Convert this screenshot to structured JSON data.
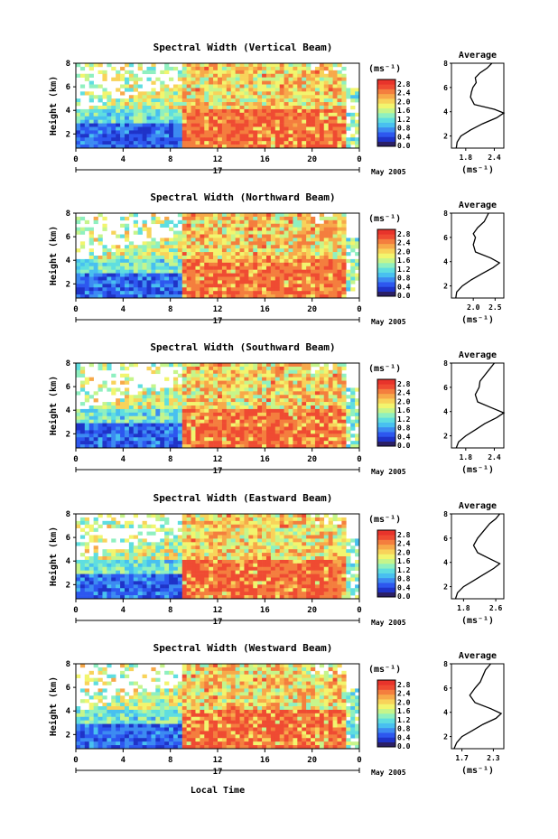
{
  "colors": {
    "colormap": [
      "#2b1f66",
      "#1f33c8",
      "#2d57ef",
      "#3c8bf2",
      "#48c0f0",
      "#5fdee0",
      "#8ff0c0",
      "#c6f58b",
      "#f2f56e",
      "#f8d35a",
      "#f7a94a",
      "#f47e3e",
      "#ef4b32",
      "#e8332b"
    ],
    "line": "#000000",
    "axis": "#000000"
  },
  "figure": {
    "xlabel": "Local Time",
    "date_label": "May 2005",
    "day_label": "17",
    "colorbar_unit": "(ms⁻¹)",
    "avg_title": "Average",
    "avg_unit": "(ms⁻¹)",
    "ylabel": "Height (km)"
  },
  "chart_data": [
    {
      "type": "heatmap",
      "title": "Spectral Width (Vertical Beam)",
      "xlabel": "",
      "ylabel": "Height (km)",
      "x_ticks": [
        "0",
        "4",
        "8",
        "12",
        "16",
        "20",
        "0"
      ],
      "xlim": [
        0,
        24
      ],
      "y_ticks": [
        "2",
        "4",
        "6",
        "8"
      ],
      "ylim": [
        0.8,
        8
      ],
      "colorbar_ticks": [
        "0.0",
        "0.4",
        "0.8",
        "1.2",
        "1.6",
        "2.0",
        "2.4",
        "2.8"
      ],
      "colorbar_range": [
        0,
        3.0
      ],
      "average_profile": {
        "title": "Average",
        "xlabel": "(ms⁻¹)",
        "x_ticks": [
          "1.8",
          "2.4"
        ],
        "xlim": [
          1.5,
          2.6
        ],
        "ylim": [
          1,
          8
        ],
        "points": [
          [
            1.6,
            1.0
          ],
          [
            1.62,
            1.5
          ],
          [
            1.7,
            2.0
          ],
          [
            1.9,
            2.5
          ],
          [
            2.15,
            3.0
          ],
          [
            2.45,
            3.5
          ],
          [
            2.6,
            3.9
          ],
          [
            2.4,
            4.2
          ],
          [
            1.98,
            4.6
          ],
          [
            1.9,
            5.2
          ],
          [
            1.92,
            5.6
          ],
          [
            1.95,
            6.0
          ],
          [
            2.02,
            6.4
          ],
          [
            2.0,
            6.8
          ],
          [
            2.1,
            7.2
          ],
          [
            2.25,
            7.6
          ],
          [
            2.35,
            8.0
          ]
        ]
      }
    },
    {
      "type": "heatmap",
      "title": "Spectral Width (Northward Beam)",
      "xlabel": "",
      "ylabel": "Height (km)",
      "x_ticks": [
        "0",
        "4",
        "8",
        "12",
        "16",
        "20",
        "0"
      ],
      "xlim": [
        0,
        24
      ],
      "y_ticks": [
        "2",
        "4",
        "6",
        "8"
      ],
      "ylim": [
        0.8,
        8
      ],
      "colorbar_ticks": [
        "0.0",
        "0.4",
        "0.8",
        "1.2",
        "1.6",
        "2.0",
        "2.4",
        "2.8"
      ],
      "colorbar_range": [
        0,
        3.0
      ],
      "average_profile": {
        "title": "Average",
        "xlabel": "(ms⁻¹)",
        "x_ticks": [
          "2.0",
          "2.5"
        ],
        "xlim": [
          1.5,
          2.7
        ],
        "ylim": [
          1,
          8
        ],
        "points": [
          [
            1.6,
            1.0
          ],
          [
            1.62,
            1.5
          ],
          [
            1.75,
            2.0
          ],
          [
            1.95,
            2.5
          ],
          [
            2.2,
            3.0
          ],
          [
            2.45,
            3.5
          ],
          [
            2.6,
            3.9
          ],
          [
            2.4,
            4.3
          ],
          [
            2.05,
            4.8
          ],
          [
            2.0,
            5.4
          ],
          [
            2.05,
            6.0
          ],
          [
            2.0,
            6.3
          ],
          [
            2.1,
            6.8
          ],
          [
            2.25,
            7.3
          ],
          [
            2.35,
            8.0
          ]
        ]
      }
    },
    {
      "type": "heatmap",
      "title": "Spectral Width (Southward Beam)",
      "xlabel": "",
      "ylabel": "Height (km)",
      "x_ticks": [
        "0",
        "4",
        "8",
        "12",
        "16",
        "20",
        "0"
      ],
      "xlim": [
        0,
        24
      ],
      "y_ticks": [
        "2",
        "4",
        "6",
        "8"
      ],
      "ylim": [
        0.8,
        8
      ],
      "colorbar_ticks": [
        "0.0",
        "0.4",
        "0.8",
        "1.2",
        "1.6",
        "2.0",
        "2.4",
        "2.8"
      ],
      "colorbar_range": [
        0,
        3.0
      ],
      "average_profile": {
        "title": "Average",
        "xlabel": "(ms⁻¹)",
        "x_ticks": [
          "1.8",
          "2.4"
        ],
        "xlim": [
          1.5,
          2.6
        ],
        "ylim": [
          1,
          8
        ],
        "points": [
          [
            1.6,
            1.0
          ],
          [
            1.65,
            1.5
          ],
          [
            1.8,
            2.0
          ],
          [
            2.0,
            2.5
          ],
          [
            2.2,
            3.0
          ],
          [
            2.45,
            3.5
          ],
          [
            2.6,
            3.9
          ],
          [
            2.35,
            4.3
          ],
          [
            2.05,
            4.8
          ],
          [
            2.0,
            5.4
          ],
          [
            2.08,
            6.0
          ],
          [
            2.1,
            6.5
          ],
          [
            2.2,
            7.0
          ],
          [
            2.3,
            7.5
          ],
          [
            2.4,
            8.0
          ]
        ]
      }
    },
    {
      "type": "heatmap",
      "title": "Spectral Width (Eastward Beam)",
      "xlabel": "",
      "ylabel": "Height (km)",
      "x_ticks": [
        "0",
        "4",
        "8",
        "12",
        "16",
        "20",
        "0"
      ],
      "xlim": [
        0,
        24
      ],
      "y_ticks": [
        "2",
        "4",
        "6",
        "8"
      ],
      "ylim": [
        0.8,
        8
      ],
      "colorbar_ticks": [
        "0.0",
        "0.4",
        "0.8",
        "1.2",
        "1.6",
        "2.0",
        "2.4",
        "2.8"
      ],
      "colorbar_range": [
        0,
        3.0
      ],
      "average_profile": {
        "title": "Average",
        "xlabel": "(ms⁻¹)",
        "x_ticks": [
          "1.8",
          "2.6"
        ],
        "xlim": [
          1.5,
          2.8
        ],
        "ylim": [
          1,
          8
        ],
        "points": [
          [
            1.6,
            1.0
          ],
          [
            1.65,
            1.5
          ],
          [
            1.8,
            2.0
          ],
          [
            2.05,
            2.5
          ],
          [
            2.3,
            3.0
          ],
          [
            2.55,
            3.5
          ],
          [
            2.7,
            3.9
          ],
          [
            2.45,
            4.3
          ],
          [
            2.15,
            4.8
          ],
          [
            2.05,
            5.4
          ],
          [
            2.15,
            6.0
          ],
          [
            2.3,
            6.6
          ],
          [
            2.45,
            7.2
          ],
          [
            2.6,
            7.6
          ],
          [
            2.7,
            8.0
          ]
        ]
      }
    },
    {
      "type": "heatmap",
      "title": "Spectral Width (Westward Beam)",
      "xlabel": "Local Time",
      "ylabel": "Height (km)",
      "x_ticks": [
        "0",
        "4",
        "8",
        "12",
        "16",
        "20",
        "0"
      ],
      "xlim": [
        0,
        24
      ],
      "y_ticks": [
        "2",
        "4",
        "6",
        "8"
      ],
      "ylim": [
        0.8,
        8
      ],
      "colorbar_ticks": [
        "0.0",
        "0.4",
        "0.8",
        "1.2",
        "1.6",
        "2.0",
        "2.4",
        "2.8"
      ],
      "colorbar_range": [
        0,
        3.0
      ],
      "average_profile": {
        "title": "Average",
        "xlabel": "(ms⁻¹)",
        "x_ticks": [
          "1.7",
          "2.3"
        ],
        "xlim": [
          1.5,
          2.5
        ],
        "ylim": [
          1,
          8
        ],
        "points": [
          [
            1.55,
            1.0
          ],
          [
            1.6,
            1.5
          ],
          [
            1.7,
            2.0
          ],
          [
            1.9,
            2.5
          ],
          [
            2.1,
            3.0
          ],
          [
            2.35,
            3.5
          ],
          [
            2.45,
            3.9
          ],
          [
            2.25,
            4.3
          ],
          [
            1.95,
            4.8
          ],
          [
            1.85,
            5.4
          ],
          [
            1.95,
            6.0
          ],
          [
            2.05,
            6.5
          ],
          [
            2.1,
            7.0
          ],
          [
            2.15,
            7.5
          ],
          [
            2.25,
            8.0
          ]
        ]
      }
    }
  ]
}
